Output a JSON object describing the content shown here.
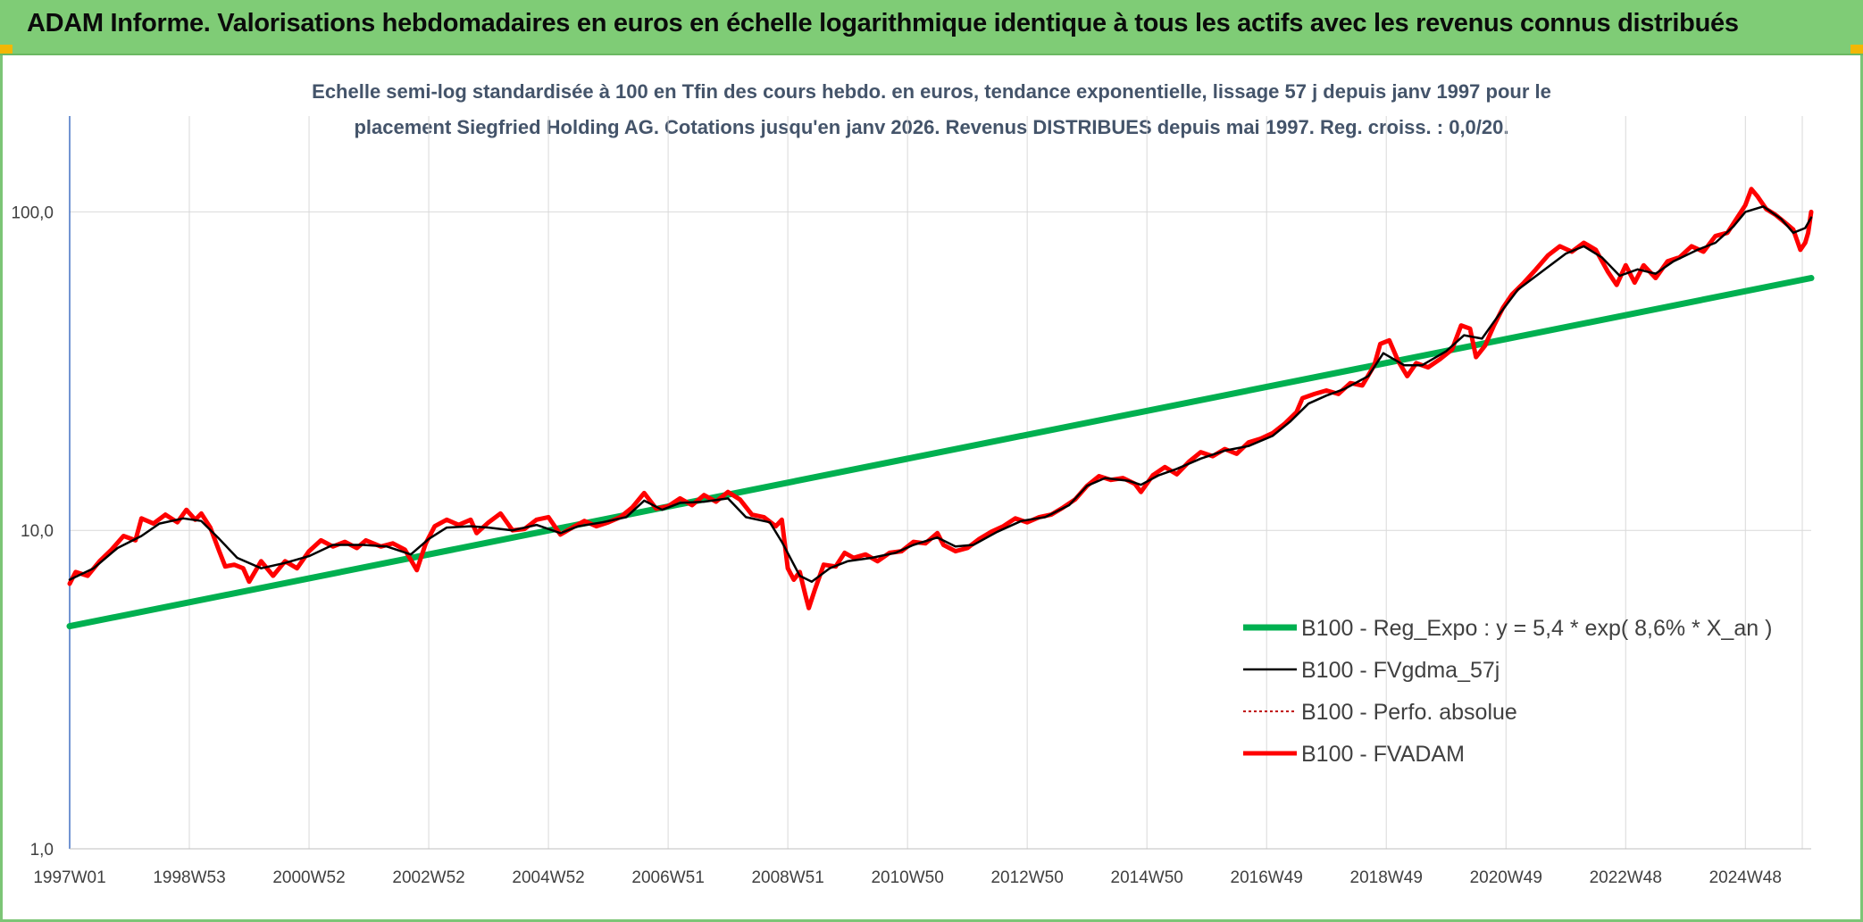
{
  "header": {
    "title": "ADAM Informe. Valorisations hebdomadaires en euros en échelle logarithmique identique à tous les actifs avec les revenus connus distribués"
  },
  "colors": {
    "header_bg": "#7fcc76",
    "regression": "#00b050",
    "smoothed": "#000000",
    "perf": "#c00000",
    "fvadam": "#ff0000"
  },
  "chart_data": {
    "type": "line",
    "title_lines": [
      "Echelle semi-log standardisée à 100 en Tfin des cours hebdo. en euros, tendance exponentielle, lissage 57 j depuis janv 1997 pour le",
      "placement Siegfried Holding AG. Cotations jusqu'en janv 2026. Revenus DISTRIBUES depuis mai 1997. Reg. croiss. : 0,0/20."
    ],
    "y_scale": "log",
    "ylim": [
      1,
      200
    ],
    "y_ticks": [
      {
        "value": 1,
        "label": "1,0"
      },
      {
        "value": 10,
        "label": "10,0"
      },
      {
        "value": 100,
        "label": "100,0"
      }
    ],
    "x_range": [
      1997.0,
      2026.1
    ],
    "x_ticks": [
      {
        "pos": 1997.0,
        "label": "1997W01"
      },
      {
        "pos": 1999.0,
        "label": "1998W53"
      },
      {
        "pos": 2001.0,
        "label": "2000W52"
      },
      {
        "pos": 2003.0,
        "label": "2002W52"
      },
      {
        "pos": 2005.0,
        "label": "2004W52"
      },
      {
        "pos": 2007.0,
        "label": "2006W51"
      },
      {
        "pos": 2009.0,
        "label": "2008W51"
      },
      {
        "pos": 2011.0,
        "label": "2010W50"
      },
      {
        "pos": 2013.0,
        "label": "2012W50"
      },
      {
        "pos": 2015.0,
        "label": "2014W50"
      },
      {
        "pos": 2017.0,
        "label": "2016W49"
      },
      {
        "pos": 2019.0,
        "label": "2018W49"
      },
      {
        "pos": 2021.0,
        "label": "2020W49"
      },
      {
        "pos": 2023.0,
        "label": "2022W48"
      },
      {
        "pos": 2025.0,
        "label": "2024W48"
      }
    ],
    "grid": true,
    "legend_position": "bottom-right",
    "series": [
      {
        "name": "B100 - Reg_Expo : y = 5,4 * exp( 8,6% *  X_an )",
        "style": "regression",
        "points": [
          [
            1997.0,
            5.0
          ],
          [
            2026.1,
            62.0
          ]
        ]
      },
      {
        "name": "B100 - FVgdma_57j",
        "style": "smoothed",
        "points": [
          [
            1997.0,
            7.0
          ],
          [
            1997.4,
            7.6
          ],
          [
            1997.8,
            8.8
          ],
          [
            1998.2,
            9.6
          ],
          [
            1998.5,
            10.5
          ],
          [
            1998.9,
            10.9
          ],
          [
            1999.2,
            10.7
          ],
          [
            1999.5,
            9.4
          ],
          [
            1999.8,
            8.2
          ],
          [
            2000.2,
            7.6
          ],
          [
            2000.6,
            7.9
          ],
          [
            2001.0,
            8.3
          ],
          [
            2001.4,
            9.0
          ],
          [
            2001.9,
            9.0
          ],
          [
            2002.3,
            8.9
          ],
          [
            2002.7,
            8.4
          ],
          [
            2003.0,
            9.4
          ],
          [
            2003.3,
            10.2
          ],
          [
            2003.7,
            10.3
          ],
          [
            2004.0,
            10.2
          ],
          [
            2004.4,
            10.0
          ],
          [
            2004.8,
            10.4
          ],
          [
            2005.2,
            9.8
          ],
          [
            2005.5,
            10.3
          ],
          [
            2005.9,
            10.6
          ],
          [
            2006.3,
            11.0
          ],
          [
            2006.6,
            12.4
          ],
          [
            2006.9,
            11.6
          ],
          [
            2007.2,
            12.2
          ],
          [
            2007.6,
            12.3
          ],
          [
            2008.0,
            12.6
          ],
          [
            2008.3,
            11.0
          ],
          [
            2008.7,
            10.6
          ],
          [
            2008.9,
            9.2
          ],
          [
            2009.2,
            7.2
          ],
          [
            2009.4,
            6.9
          ],
          [
            2009.7,
            7.6
          ],
          [
            2010.0,
            8.0
          ],
          [
            2010.4,
            8.2
          ],
          [
            2010.8,
            8.5
          ],
          [
            2011.1,
            9.0
          ],
          [
            2011.5,
            9.5
          ],
          [
            2011.8,
            8.9
          ],
          [
            2012.1,
            9.0
          ],
          [
            2012.5,
            9.9
          ],
          [
            2012.9,
            10.7
          ],
          [
            2013.3,
            11.0
          ],
          [
            2013.7,
            12.0
          ],
          [
            2014.0,
            13.8
          ],
          [
            2014.3,
            14.6
          ],
          [
            2014.7,
            14.3
          ],
          [
            2014.9,
            13.9
          ],
          [
            2015.2,
            14.9
          ],
          [
            2015.5,
            15.6
          ],
          [
            2015.9,
            16.8
          ],
          [
            2016.3,
            17.8
          ],
          [
            2016.7,
            18.4
          ],
          [
            2017.1,
            19.8
          ],
          [
            2017.4,
            22.0
          ],
          [
            2017.7,
            25.0
          ],
          [
            2018.0,
            26.5
          ],
          [
            2018.3,
            27.8
          ],
          [
            2018.7,
            30.5
          ],
          [
            2018.95,
            36.0
          ],
          [
            2019.3,
            33.0
          ],
          [
            2019.6,
            33.0
          ],
          [
            2020.0,
            36.5
          ],
          [
            2020.3,
            41.0
          ],
          [
            2020.6,
            40.0
          ],
          [
            2020.9,
            48.0
          ],
          [
            2021.2,
            57.0
          ],
          [
            2021.6,
            65.0
          ],
          [
            2022.0,
            74.0
          ],
          [
            2022.3,
            78.0
          ],
          [
            2022.6,
            72.0
          ],
          [
            2022.9,
            63.0
          ],
          [
            2023.2,
            66.0
          ],
          [
            2023.5,
            64.0
          ],
          [
            2023.8,
            70.0
          ],
          [
            2024.2,
            76.0
          ],
          [
            2024.5,
            80.0
          ],
          [
            2024.8,
            90.0
          ],
          [
            2025.0,
            100.0
          ],
          [
            2025.3,
            104.0
          ],
          [
            2025.6,
            95.0
          ],
          [
            2025.8,
            86.0
          ],
          [
            2026.0,
            89.0
          ],
          [
            2026.1,
            96.0
          ]
        ]
      },
      {
        "name": "B100 - Perfo. absolue",
        "style": "perf",
        "points": []
      },
      {
        "name": "B100 - FVADAM",
        "style": "fvadam",
        "points": [
          [
            1997.0,
            6.8
          ],
          [
            1997.1,
            7.4
          ],
          [
            1997.3,
            7.2
          ],
          [
            1997.5,
            8.0
          ],
          [
            1997.7,
            8.7
          ],
          [
            1997.9,
            9.6
          ],
          [
            1998.1,
            9.3
          ],
          [
            1998.2,
            10.9
          ],
          [
            1998.4,
            10.5
          ],
          [
            1998.6,
            11.2
          ],
          [
            1998.8,
            10.6
          ],
          [
            1998.95,
            11.6
          ],
          [
            1999.1,
            10.8
          ],
          [
            1999.2,
            11.3
          ],
          [
            1999.35,
            10.2
          ],
          [
            1999.5,
            8.6
          ],
          [
            1999.6,
            7.7
          ],
          [
            1999.75,
            7.8
          ],
          [
            1999.9,
            7.6
          ],
          [
            2000.0,
            6.9
          ],
          [
            2000.2,
            8.0
          ],
          [
            2000.4,
            7.2
          ],
          [
            2000.6,
            8.0
          ],
          [
            2000.8,
            7.6
          ],
          [
            2001.0,
            8.6
          ],
          [
            2001.2,
            9.3
          ],
          [
            2001.4,
            8.9
          ],
          [
            2001.6,
            9.2
          ],
          [
            2001.8,
            8.8
          ],
          [
            2001.95,
            9.3
          ],
          [
            2002.2,
            8.9
          ],
          [
            2002.4,
            9.1
          ],
          [
            2002.6,
            8.7
          ],
          [
            2002.8,
            7.5
          ],
          [
            2002.95,
            9.1
          ],
          [
            2003.1,
            10.3
          ],
          [
            2003.3,
            10.8
          ],
          [
            2003.5,
            10.4
          ],
          [
            2003.7,
            10.8
          ],
          [
            2003.8,
            9.8
          ],
          [
            2004.0,
            10.6
          ],
          [
            2004.2,
            11.3
          ],
          [
            2004.4,
            10.0
          ],
          [
            2004.6,
            10.1
          ],
          [
            2004.8,
            10.8
          ],
          [
            2005.0,
            11.0
          ],
          [
            2005.2,
            9.7
          ],
          [
            2005.4,
            10.2
          ],
          [
            2005.6,
            10.7
          ],
          [
            2005.8,
            10.3
          ],
          [
            2006.0,
            10.6
          ],
          [
            2006.2,
            11.0
          ],
          [
            2006.4,
            11.8
          ],
          [
            2006.6,
            13.1
          ],
          [
            2006.8,
            11.7
          ],
          [
            2007.0,
            11.9
          ],
          [
            2007.2,
            12.6
          ],
          [
            2007.4,
            12.0
          ],
          [
            2007.6,
            12.9
          ],
          [
            2007.8,
            12.3
          ],
          [
            2008.0,
            13.2
          ],
          [
            2008.2,
            12.5
          ],
          [
            2008.4,
            11.2
          ],
          [
            2008.6,
            11.0
          ],
          [
            2008.8,
            10.3
          ],
          [
            2008.9,
            10.8
          ],
          [
            2009.0,
            7.6
          ],
          [
            2009.1,
            7.0
          ],
          [
            2009.2,
            7.4
          ],
          [
            2009.3,
            6.2
          ],
          [
            2009.35,
            5.7
          ],
          [
            2009.45,
            6.5
          ],
          [
            2009.6,
            7.8
          ],
          [
            2009.8,
            7.7
          ],
          [
            2009.95,
            8.5
          ],
          [
            2010.1,
            8.2
          ],
          [
            2010.3,
            8.4
          ],
          [
            2010.5,
            8.0
          ],
          [
            2010.7,
            8.5
          ],
          [
            2010.9,
            8.6
          ],
          [
            2011.1,
            9.2
          ],
          [
            2011.3,
            9.1
          ],
          [
            2011.5,
            9.8
          ],
          [
            2011.6,
            9.0
          ],
          [
            2011.8,
            8.6
          ],
          [
            2012.0,
            8.8
          ],
          [
            2012.2,
            9.4
          ],
          [
            2012.4,
            9.9
          ],
          [
            2012.6,
            10.3
          ],
          [
            2012.8,
            10.9
          ],
          [
            2013.0,
            10.6
          ],
          [
            2013.2,
            11.0
          ],
          [
            2013.4,
            11.2
          ],
          [
            2013.6,
            11.8
          ],
          [
            2013.8,
            12.5
          ],
          [
            2014.0,
            13.8
          ],
          [
            2014.2,
            14.8
          ],
          [
            2014.4,
            14.4
          ],
          [
            2014.6,
            14.6
          ],
          [
            2014.8,
            14.0
          ],
          [
            2014.9,
            13.2
          ],
          [
            2015.1,
            14.9
          ],
          [
            2015.3,
            15.8
          ],
          [
            2015.5,
            15.0
          ],
          [
            2015.7,
            16.4
          ],
          [
            2015.9,
            17.6
          ],
          [
            2016.1,
            17.1
          ],
          [
            2016.3,
            18.0
          ],
          [
            2016.5,
            17.4
          ],
          [
            2016.7,
            18.9
          ],
          [
            2016.9,
            19.4
          ],
          [
            2017.1,
            20.2
          ],
          [
            2017.3,
            21.6
          ],
          [
            2017.5,
            23.5
          ],
          [
            2017.6,
            26.0
          ],
          [
            2017.8,
            26.8
          ],
          [
            2018.0,
            27.5
          ],
          [
            2018.2,
            26.8
          ],
          [
            2018.4,
            29.0
          ],
          [
            2018.6,
            28.5
          ],
          [
            2018.8,
            33.0
          ],
          [
            2018.9,
            38.5
          ],
          [
            2019.05,
            39.5
          ],
          [
            2019.2,
            34.0
          ],
          [
            2019.35,
            30.5
          ],
          [
            2019.5,
            33.5
          ],
          [
            2019.7,
            32.5
          ],
          [
            2019.9,
            34.5
          ],
          [
            2020.1,
            37.0
          ],
          [
            2020.25,
            44.0
          ],
          [
            2020.4,
            43.0
          ],
          [
            2020.5,
            35.0
          ],
          [
            2020.65,
            38.0
          ],
          [
            2020.8,
            44.0
          ],
          [
            2020.95,
            50.0
          ],
          [
            2021.1,
            55.0
          ],
          [
            2021.3,
            60.0
          ],
          [
            2021.5,
            66.0
          ],
          [
            2021.7,
            73.0
          ],
          [
            2021.9,
            78.0
          ],
          [
            2022.1,
            75.0
          ],
          [
            2022.3,
            80.0
          ],
          [
            2022.5,
            76.0
          ],
          [
            2022.7,
            65.0
          ],
          [
            2022.85,
            59.0
          ],
          [
            2023.0,
            68.0
          ],
          [
            2023.15,
            60.0
          ],
          [
            2023.3,
            68.0
          ],
          [
            2023.5,
            62.0
          ],
          [
            2023.7,
            70.0
          ],
          [
            2023.9,
            72.0
          ],
          [
            2024.1,
            78.0
          ],
          [
            2024.3,
            75.0
          ],
          [
            2024.5,
            84.0
          ],
          [
            2024.7,
            86.0
          ],
          [
            2024.85,
            95.0
          ],
          [
            2025.0,
            105.0
          ],
          [
            2025.1,
            118.0
          ],
          [
            2025.2,
            112.0
          ],
          [
            2025.35,
            102.0
          ],
          [
            2025.5,
            98.0
          ],
          [
            2025.65,
            93.0
          ],
          [
            2025.8,
            88.0
          ],
          [
            2025.92,
            76.0
          ],
          [
            2026.0,
            80.0
          ],
          [
            2026.05,
            86.0
          ],
          [
            2026.1,
            100.0
          ]
        ]
      }
    ]
  }
}
